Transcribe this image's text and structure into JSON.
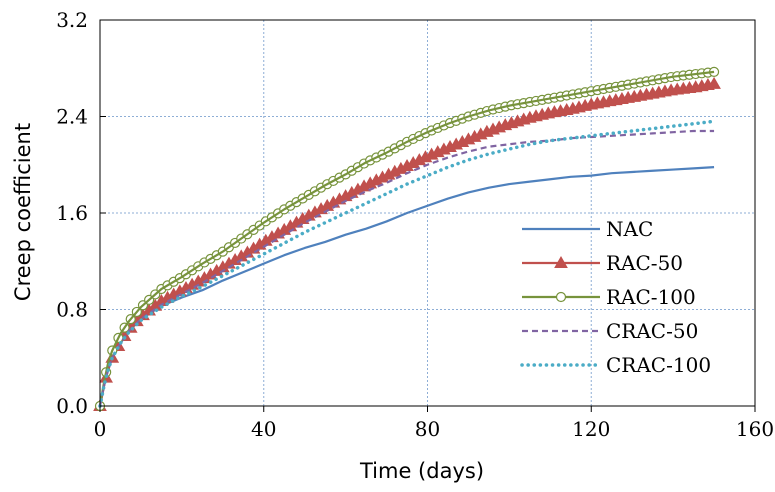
{
  "chart_data": {
    "type": "line",
    "xlabel": "Time (days)",
    "ylabel": "Creep coefficient",
    "xlim": [
      0,
      160
    ],
    "ylim": [
      0,
      3.2
    ],
    "xticks": [
      "0",
      "40",
      "80",
      "120",
      "160"
    ],
    "yticks": [
      "0.0",
      "0.8",
      "1.6",
      "2.4",
      "3.2"
    ],
    "grid": true,
    "legend_position": "bottom-right",
    "series": [
      {
        "name": "NAC",
        "color": "#4f81bd",
        "style": "solid",
        "marker": "none",
        "x": [
          0,
          1,
          2,
          3,
          5,
          7,
          10,
          15,
          20,
          25,
          30,
          35,
          40,
          45,
          50,
          55,
          60,
          65,
          70,
          75,
          80,
          85,
          90,
          95,
          100,
          105,
          110,
          115,
          120,
          125,
          130,
          135,
          140,
          145,
          150
        ],
        "y": [
          0,
          0.17,
          0.3,
          0.4,
          0.52,
          0.62,
          0.72,
          0.83,
          0.9,
          0.96,
          1.04,
          1.11,
          1.18,
          1.25,
          1.31,
          1.36,
          1.42,
          1.47,
          1.53,
          1.6,
          1.66,
          1.72,
          1.77,
          1.81,
          1.84,
          1.86,
          1.88,
          1.9,
          1.91,
          1.93,
          1.94,
          1.95,
          1.96,
          1.97,
          1.98
        ]
      },
      {
        "name": "RAC-50",
        "color": "#c0504d",
        "style": "solid",
        "marker": "triangle",
        "x": [
          0,
          1,
          2,
          3,
          5,
          7,
          10,
          15,
          20,
          25,
          30,
          35,
          40,
          45,
          50,
          55,
          60,
          65,
          70,
          75,
          80,
          85,
          90,
          95,
          100,
          105,
          110,
          115,
          120,
          125,
          130,
          135,
          140,
          145,
          150
        ],
        "y": [
          0,
          0.17,
          0.3,
          0.4,
          0.53,
          0.63,
          0.74,
          0.87,
          0.96,
          1.05,
          1.15,
          1.25,
          1.36,
          1.46,
          1.56,
          1.65,
          1.74,
          1.83,
          1.91,
          1.99,
          2.07,
          2.14,
          2.21,
          2.28,
          2.34,
          2.39,
          2.43,
          2.46,
          2.5,
          2.53,
          2.56,
          2.59,
          2.62,
          2.64,
          2.67
        ]
      },
      {
        "name": "RAC-100",
        "color": "#77933c",
        "style": "solid",
        "marker": "circle",
        "x": [
          0,
          1,
          2,
          3,
          5,
          7,
          10,
          15,
          20,
          25,
          30,
          35,
          40,
          45,
          50,
          55,
          60,
          65,
          70,
          75,
          80,
          85,
          90,
          95,
          100,
          105,
          110,
          115,
          120,
          125,
          130,
          135,
          140,
          145,
          150
        ],
        "y": [
          0,
          0.2,
          0.36,
          0.46,
          0.6,
          0.7,
          0.82,
          0.97,
          1.07,
          1.18,
          1.28,
          1.4,
          1.52,
          1.63,
          1.73,
          1.83,
          1.92,
          2.02,
          2.1,
          2.19,
          2.27,
          2.34,
          2.4,
          2.45,
          2.49,
          2.52,
          2.55,
          2.58,
          2.61,
          2.64,
          2.67,
          2.7,
          2.73,
          2.75,
          2.77
        ]
      },
      {
        "name": "CRAC-50",
        "color": "#8064a2",
        "style": "dashed",
        "marker": "none",
        "x": [
          0,
          1,
          2,
          3,
          5,
          7,
          10,
          15,
          20,
          25,
          30,
          35,
          40,
          45,
          50,
          55,
          60,
          65,
          70,
          75,
          80,
          85,
          90,
          95,
          100,
          105,
          110,
          115,
          120,
          125,
          130,
          135,
          140,
          145,
          150
        ],
        "y": [
          0,
          0.17,
          0.3,
          0.4,
          0.52,
          0.62,
          0.72,
          0.84,
          0.93,
          1.02,
          1.12,
          1.22,
          1.32,
          1.42,
          1.52,
          1.61,
          1.7,
          1.78,
          1.85,
          1.93,
          2.0,
          2.06,
          2.11,
          2.15,
          2.17,
          2.19,
          2.2,
          2.22,
          2.23,
          2.24,
          2.25,
          2.26,
          2.27,
          2.28,
          2.28
        ]
      },
      {
        "name": "CRAC-100",
        "color": "#4bacc6",
        "style": "dotted",
        "marker": "none",
        "x": [
          0,
          1,
          2,
          3,
          5,
          7,
          10,
          15,
          20,
          25,
          30,
          35,
          40,
          45,
          50,
          55,
          60,
          65,
          70,
          75,
          80,
          85,
          90,
          95,
          100,
          105,
          110,
          115,
          120,
          125,
          130,
          135,
          140,
          145,
          150
        ],
        "y": [
          0,
          0.17,
          0.3,
          0.4,
          0.52,
          0.61,
          0.71,
          0.82,
          0.91,
          0.99,
          1.08,
          1.17,
          1.26,
          1.35,
          1.44,
          1.52,
          1.6,
          1.68,
          1.76,
          1.84,
          1.91,
          1.98,
          2.04,
          2.09,
          2.13,
          2.17,
          2.2,
          2.22,
          2.24,
          2.26,
          2.28,
          2.3,
          2.32,
          2.34,
          2.36
        ]
      }
    ]
  }
}
